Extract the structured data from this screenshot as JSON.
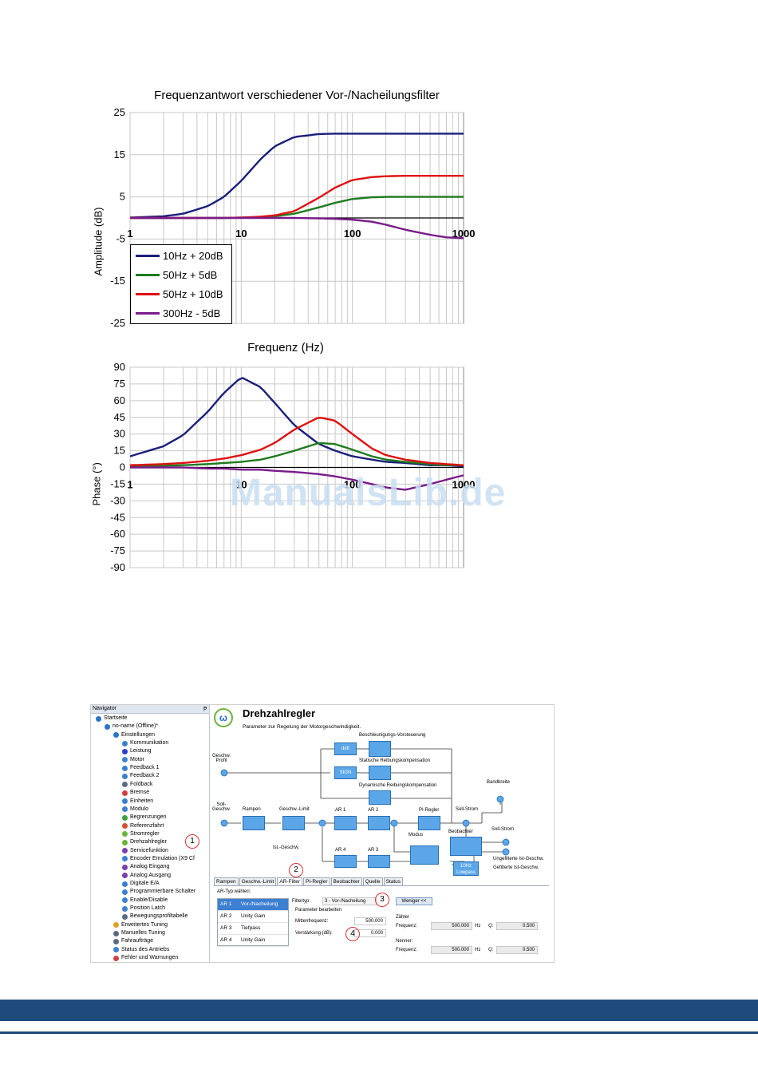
{
  "watermark": "ManualsLib.de",
  "chart_data": [
    {
      "type": "line",
      "title": "Frequenzantwort verschiedener Vor-/Nacheilungsfilter",
      "xlabel": "Frequenz (Hz)",
      "ylabel": "Amplitude (dB)",
      "xscale": "log",
      "xlim": [
        1,
        1000
      ],
      "ylim": [
        -25,
        25
      ],
      "yticks": [
        "25",
        "15",
        "5",
        "-5",
        "-15",
        "-25"
      ],
      "xticks": [
        "1",
        "10",
        "100",
        "1000"
      ],
      "grid": true,
      "legend_position": "bottom-left",
      "x": [
        1,
        2,
        3,
        5,
        7,
        10,
        15,
        20,
        30,
        50,
        70,
        100,
        150,
        200,
        300,
        500,
        700,
        1000
      ],
      "series": [
        {
          "name": "10Hz + 20dB",
          "color": "#1a1f7a",
          "values": [
            0.1,
            0.4,
            1.0,
            2.8,
            5.0,
            8.8,
            14.0,
            17.0,
            19.2,
            19.9,
            20.0,
            20.0,
            20.0,
            20.0,
            20.0,
            20.0,
            20.0,
            20.0
          ]
        },
        {
          "name": "50Hz + 5dB",
          "color": "#1e7b1e",
          "values": [
            0,
            0,
            0,
            0,
            0,
            0.1,
            0.2,
            0.4,
            1.0,
            2.5,
            3.6,
            4.5,
            4.9,
            5.0,
            5.0,
            5.0,
            5.0,
            5.0
          ]
        },
        {
          "name": "50Hz + 10dB",
          "color": "#e01010",
          "values": [
            0,
            0,
            0,
            0,
            0,
            0.1,
            0.3,
            0.6,
            1.6,
            4.8,
            7.2,
            9.0,
            9.7,
            9.9,
            10.0,
            10.0,
            10.0,
            10.0
          ]
        },
        {
          "name": "300Hz - 5dB",
          "color": "#7a1a8a",
          "values": [
            0,
            0,
            0,
            0,
            0,
            0,
            0,
            0,
            0,
            -0.1,
            -0.2,
            -0.4,
            -0.9,
            -1.6,
            -2.8,
            -4.0,
            -4.6,
            -4.8
          ]
        }
      ]
    },
    {
      "type": "line",
      "title": "",
      "xlabel": "",
      "ylabel": "Phase (°)",
      "xscale": "log",
      "xlim": [
        1,
        1000
      ],
      "ylim": [
        -90,
        90
      ],
      "yticks": [
        "90",
        "75",
        "60",
        "45",
        "30",
        "15",
        "0",
        "-15",
        "-30",
        "-45",
        "-60",
        "-75",
        "-90"
      ],
      "xticks": [
        "1",
        "10",
        "100",
        "1000"
      ],
      "grid": true,
      "x": [
        1,
        2,
        3,
        5,
        7,
        10,
        15,
        20,
        30,
        50,
        70,
        100,
        150,
        200,
        300,
        500,
        700,
        1000
      ],
      "series": [
        {
          "name": "10Hz + 20dB",
          "color": "#1a1f7a",
          "values": [
            10,
            19,
            29,
            50,
            67,
            81,
            72,
            58,
            38,
            21,
            15,
            10,
            7,
            5,
            4,
            2,
            2,
            1
          ]
        },
        {
          "name": "50Hz + 5dB",
          "color": "#1e7b1e",
          "values": [
            1,
            1.5,
            2,
            3,
            4,
            5,
            7,
            10,
            15,
            22,
            21,
            16,
            10,
            7,
            5,
            3,
            2,
            2
          ]
        },
        {
          "name": "50Hz + 10dB",
          "color": "#e01010",
          "values": [
            2,
            3,
            4,
            6,
            8,
            11,
            16,
            22,
            34,
            45,
            42,
            30,
            17,
            11,
            7,
            4,
            3,
            2
          ]
        },
        {
          "name": "300Hz - 5dB",
          "color": "#7a1a8a",
          "values": [
            0,
            0,
            0,
            -1,
            -1,
            -2,
            -2,
            -3,
            -4,
            -6,
            -8,
            -11,
            -15,
            -18,
            -20,
            -15,
            -11,
            -7
          ]
        }
      ]
    }
  ],
  "screenshot": {
    "nav_header": "Navigator",
    "nav_pin": "ᵽ",
    "nav_items": [
      {
        "label": "Startseite",
        "indent": 0,
        "color": "#2a75c8"
      },
      {
        "label": "no-name (Offline)*",
        "indent": 1,
        "color": "#2a75c8"
      },
      {
        "label": "Einstellungen",
        "indent": 2,
        "color": "#2a75c8"
      },
      {
        "label": "Kommunikation",
        "indent": 3,
        "color": "#3b7fd0"
      },
      {
        "label": "Leistung",
        "indent": 3,
        "color": "#2a3fc8"
      },
      {
        "label": "Motor",
        "indent": 3,
        "color": "#3b7fd0"
      },
      {
        "label": "Feedback 1",
        "indent": 3,
        "color": "#3b7fd0"
      },
      {
        "label": "Feedback 2",
        "indent": 3,
        "color": "#3b7fd0"
      },
      {
        "label": "Foldback",
        "indent": 3,
        "color": "#5a6a80"
      },
      {
        "label": "Bremse",
        "indent": 3,
        "color": "#d04040"
      },
      {
        "label": "Einheiten",
        "indent": 3,
        "color": "#3b7fd0"
      },
      {
        "label": "Modulo",
        "indent": 3,
        "color": "#3b7fd0"
      },
      {
        "label": "Begrenzungen",
        "indent": 3,
        "color": "#3ba040"
      },
      {
        "label": "Referenzfahrt",
        "indent": 3,
        "color": "#d05030"
      },
      {
        "label": "Stromregler",
        "indent": 3,
        "color": "#6bb33a"
      },
      {
        "label": "Drehzahlregler",
        "indent": 3,
        "color": "#6bb33a"
      },
      {
        "label": "Servicefunktion",
        "indent": 3,
        "color": "#7a3fb0"
      },
      {
        "label": "Encoder Emulation (X9 Cf",
        "indent": 3,
        "color": "#3b7fd0"
      },
      {
        "label": "Analog Eingang",
        "indent": 3,
        "color": "#7a3fb0"
      },
      {
        "label": "Analog Ausgang",
        "indent": 3,
        "color": "#7a3fb0"
      },
      {
        "label": "Digitale E/A",
        "indent": 3,
        "color": "#3b7fd0"
      },
      {
        "label": "Programmierbare Schalter",
        "indent": 3,
        "color": "#3b7fd0"
      },
      {
        "label": "Enable/Disable",
        "indent": 3,
        "color": "#3b7fd0"
      },
      {
        "label": "Position Latch",
        "indent": 3,
        "color": "#3b7fd0"
      },
      {
        "label": "Bewegungsprofiltabelle",
        "indent": 3,
        "color": "#5a6a80"
      },
      {
        "label": "Erweitertes Tuning",
        "indent": 2,
        "color": "#e0a020"
      },
      {
        "label": "Manuelles Tuning",
        "indent": 2,
        "color": "#5a6a80"
      },
      {
        "label": "Fahraufträge",
        "indent": 2,
        "color": "#5a6a80"
      },
      {
        "label": "Status des Antriebs",
        "indent": 2,
        "color": "#3b7fd0"
      },
      {
        "label": "Fehler und Warnungen",
        "indent": 2,
        "color": "#d04040"
      }
    ],
    "title": "Drehzahlregler",
    "subtitle": "Parameter zur Regelung der Motorgeschwindigkeit.",
    "logo": "ω",
    "diagram_blocks": [
      {
        "id": "ddt",
        "label": "d/dt"
      },
      {
        "id": "sign",
        "label": "SIGN"
      },
      {
        "id": "ff1",
        "label": ""
      },
      {
        "id": "ff2",
        "label": ""
      },
      {
        "id": "ff3",
        "label": ""
      },
      {
        "id": "rampen",
        "label": ""
      },
      {
        "id": "limit",
        "label": ""
      },
      {
        "id": "ar1",
        "label": ""
      },
      {
        "id": "ar2",
        "label": ""
      },
      {
        "id": "pi",
        "label": ""
      },
      {
        "id": "beob",
        "label": ""
      },
      {
        "id": "ar4",
        "label": ""
      },
      {
        "id": "ar3",
        "label": ""
      },
      {
        "id": "sum",
        "label": ""
      },
      {
        "id": "lp",
        "label": "10Hz Lowpass"
      }
    ],
    "diagram_labels": {
      "beschl": "Beschleunigungs-Vorsteuerung",
      "geschw_profil": "Geschw.\nProfil",
      "stat_reib": "Statische Reibungskompensation",
      "dyn_reib": "Dynamische Reibungskompensation",
      "bandbreite": "Bandbreite",
      "soll_geschw": "Soll-\nGeschw.",
      "rampen": "Rampen",
      "limit": "Geschw.-Limit",
      "ar1": "AR 1",
      "ar2": "AR 2",
      "pi": "PI-Regler",
      "soll_strom_top": "Soll-Strom",
      "modus": "Modus",
      "beobachter": "Beobachter",
      "soll_strom": "Soll-Strom",
      "ist_geschw": "Ist.-Geschw.",
      "ar4": "AR 4",
      "ar3": "AR 3",
      "ungefiltert": "Ungefilterte Ist-Geschw.",
      "gefiltert": "Gefilterte Ist-Geschw."
    },
    "tabs": [
      "Rampen",
      "Geschw.-Limit",
      "AR-Filter",
      "PI-Regler",
      "Beobachter",
      "Quelle",
      "Status"
    ],
    "active_tab": "AR-Filter",
    "ar_type_label": "AR-Typ wählen:",
    "ar_rows": [
      {
        "id": "AR 1",
        "type": "Vor-/Nacheilung",
        "selected": true
      },
      {
        "id": "AR 2",
        "type": "Unity Gain",
        "selected": false
      },
      {
        "id": "AR 3",
        "type": "Tiefpass",
        "selected": false
      },
      {
        "id": "AR 4",
        "type": "Unity Gain",
        "selected": false
      }
    ],
    "filtertyp_label": "Filtertyp:",
    "filtertyp_value": "3 - Vor-/Nacheilung",
    "weniger_button": "Weniger <<",
    "param_label": "Parameter bearbeiten",
    "mittenfreq_label": "Mittenfrequenz:",
    "mittenfreq_value": "500.000",
    "verstaerkung_label": "Verstärkung (dB):",
    "verstaerkung_value": "0.000",
    "zaehler_label": "Zähler",
    "nenner_label": "Nenner:",
    "frequenz_label": "Frequenz:",
    "zaehler_freq": "500.000",
    "zaehler_q": "0.500",
    "nenner_freq": "500.000",
    "nenner_q": "0.500",
    "hz_unit": "Hz",
    "q_label": "Q:",
    "callouts": [
      "1",
      "2",
      "3",
      "4"
    ]
  },
  "colors": {
    "footer": "#1f4a7c",
    "block": "#5aa6e8",
    "callout": "#dd3333"
  }
}
